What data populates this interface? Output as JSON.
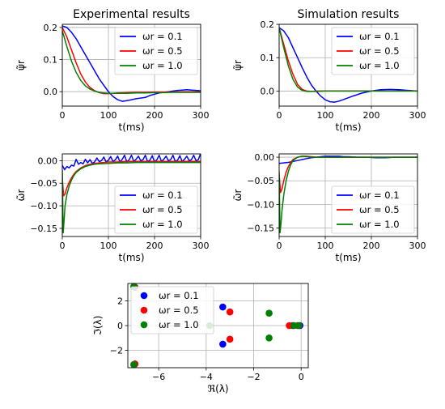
{
  "chart_data": [
    {
      "id": "exp_psi",
      "type": "line",
      "title": "Experimental results",
      "xlabel": "t(ms)",
      "ylabel": "ψ̃r",
      "xlim": [
        0,
        300
      ],
      "ylim": [
        -0.045,
        0.21
      ],
      "xticks": [
        0,
        100,
        200,
        300
      ],
      "yticks": [
        0.0,
        0.1,
        0.2
      ],
      "ytick_labels": [
        "0.0",
        "0.1",
        "0.2"
      ],
      "grid": true,
      "legend": "top-right",
      "series": [
        {
          "name": "ωr = 0.1",
          "color": "#0000ff",
          "x": [
            0,
            10,
            20,
            30,
            40,
            50,
            60,
            70,
            80,
            90,
            100,
            110,
            120,
            130,
            140,
            150,
            160,
            170,
            180,
            190,
            200,
            210,
            220,
            230,
            240,
            250,
            260,
            270,
            280,
            290,
            300
          ],
          "y": [
            0.205,
            0.2,
            0.185,
            0.165,
            0.14,
            0.115,
            0.09,
            0.065,
            0.04,
            0.02,
            0.0,
            -0.015,
            -0.025,
            -0.03,
            -0.028,
            -0.025,
            -0.022,
            -0.02,
            -0.018,
            -0.012,
            -0.008,
            -0.004,
            -0.002,
            0.0,
            0.002,
            0.004,
            0.005,
            0.006,
            0.005,
            0.004,
            0.003
          ]
        },
        {
          "name": "ωr = 0.5",
          "color": "#ff0000",
          "x": [
            0,
            10,
            20,
            30,
            40,
            50,
            60,
            70,
            80,
            90,
            100,
            120,
            140,
            160,
            180,
            200,
            220,
            240,
            260,
            280,
            300
          ],
          "y": [
            0.2,
            0.17,
            0.13,
            0.09,
            0.055,
            0.03,
            0.013,
            0.003,
            -0.003,
            -0.006,
            -0.006,
            -0.004,
            -0.003,
            -0.002,
            -0.002,
            -0.001,
            -0.001,
            -0.001,
            0.0,
            0.0,
            0.0
          ]
        },
        {
          "name": "ωr = 1.0",
          "color": "#008000",
          "x": [
            0,
            10,
            20,
            30,
            40,
            50,
            60,
            70,
            80,
            90,
            100,
            120,
            140,
            160,
            180,
            200,
            220,
            240,
            260,
            280,
            300
          ],
          "y": [
            0.19,
            0.14,
            0.095,
            0.06,
            0.035,
            0.018,
            0.008,
            0.002,
            -0.002,
            -0.004,
            -0.005,
            -0.005,
            -0.005,
            -0.004,
            -0.004,
            -0.003,
            -0.003,
            -0.002,
            -0.002,
            -0.002,
            -0.002
          ]
        }
      ]
    },
    {
      "id": "sim_psi",
      "type": "line",
      "title": "Simulation results",
      "xlabel": "t(ms)",
      "ylabel": "ψ̃r",
      "xlim": [
        0,
        300
      ],
      "ylim": [
        -0.045,
        0.2
      ],
      "xticks": [
        0,
        100,
        200,
        300
      ],
      "yticks": [
        0.0,
        0.1,
        0.2
      ],
      "ytick_labels": [
        "0.0",
        "0.1",
        "0.2"
      ],
      "grid": true,
      "legend": "top-right",
      "series": [
        {
          "name": "ωr = 0.1",
          "color": "#0000ff",
          "x": [
            0,
            10,
            20,
            30,
            40,
            50,
            60,
            70,
            80,
            90,
            100,
            110,
            120,
            130,
            140,
            160,
            180,
            200,
            220,
            240,
            260,
            280,
            300
          ],
          "y": [
            0.19,
            0.18,
            0.16,
            0.13,
            0.1,
            0.07,
            0.042,
            0.018,
            0.0,
            -0.015,
            -0.026,
            -0.032,
            -0.033,
            -0.03,
            -0.025,
            -0.015,
            -0.006,
            0.0,
            0.004,
            0.005,
            0.004,
            0.002,
            0.0
          ]
        },
        {
          "name": "ωr = 0.5",
          "color": "#ff0000",
          "x": [
            0,
            10,
            20,
            30,
            40,
            50,
            60,
            70,
            80,
            100,
            150,
            200,
            250,
            300
          ],
          "y": [
            0.19,
            0.14,
            0.09,
            0.05,
            0.02,
            0.005,
            0.0,
            -0.001,
            -0.001,
            0.0,
            0.0,
            0.0,
            0.0,
            0.0
          ]
        },
        {
          "name": "ωr = 1.0",
          "color": "#008000",
          "x": [
            0,
            10,
            20,
            30,
            40,
            50,
            60,
            70,
            80,
            100,
            150,
            200,
            250,
            300
          ],
          "y": [
            0.19,
            0.13,
            0.075,
            0.035,
            0.012,
            0.002,
            -0.001,
            -0.001,
            0.0,
            0.0,
            0.0,
            0.0,
            0.0,
            0.0
          ]
        }
      ]
    },
    {
      "id": "exp_omega",
      "type": "line",
      "title": "",
      "xlabel": "t(ms)",
      "ylabel": "ω̃r",
      "xlim": [
        0,
        300
      ],
      "ylim": [
        -0.168,
        0.015
      ],
      "xticks": [
        0,
        100,
        200,
        300
      ],
      "yticks": [
        0.0,
        -0.05,
        -0.1,
        -0.15
      ],
      "ytick_labels": [
        "0.00",
        "−0.05",
        "−0.10",
        "−0.15"
      ],
      "grid": true,
      "legend": "bottom-right",
      "series": [
        {
          "name": "ωr = 0.1",
          "color": "#0000ff",
          "x": [
            0,
            5,
            10,
            15,
            20,
            25,
            30,
            35,
            40,
            45,
            50,
            55,
            60,
            65,
            70,
            75,
            80,
            85,
            90,
            95,
            100,
            105,
            110,
            115,
            120,
            125,
            130,
            135,
            140,
            145,
            150,
            155,
            160,
            165,
            170,
            175,
            180,
            185,
            190,
            195,
            200,
            205,
            210,
            215,
            220,
            225,
            230,
            235,
            240,
            245,
            250,
            255,
            260,
            265,
            270,
            275,
            280,
            285,
            290,
            295,
            300
          ],
          "y": [
            -0.01,
            -0.02,
            -0.013,
            -0.016,
            -0.01,
            -0.012,
            0.003,
            -0.008,
            -0.004,
            -0.007,
            0.003,
            -0.005,
            0.002,
            -0.006,
            -0.003,
            0.006,
            -0.002,
            0.0,
            0.008,
            -0.003,
            0.001,
            0.009,
            -0.002,
            0.002,
            0.01,
            -0.003,
            0.003,
            0.012,
            -0.003,
            0.002,
            0.012,
            -0.002,
            0.003,
            0.01,
            0.0,
            0.002,
            0.012,
            -0.002,
            0.001,
            0.011,
            -0.003,
            0.002,
            0.012,
            -0.002,
            0.003,
            0.01,
            0.0,
            0.002,
            0.012,
            -0.002,
            0.001,
            0.011,
            -0.002,
            0.003,
            0.01,
            0.0,
            0.002,
            0.012,
            0.0,
            0.002,
            0.016
          ]
        },
        {
          "name": "ωr = 0.5",
          "color": "#ff0000",
          "x": [
            0,
            3,
            6,
            10,
            15,
            20,
            25,
            30,
            40,
            50,
            60,
            70,
            80,
            90,
            100,
            120,
            140,
            160,
            180,
            200,
            220,
            240,
            260,
            280,
            300
          ],
          "y": [
            -0.04,
            -0.078,
            -0.074,
            -0.06,
            -0.048,
            -0.038,
            -0.03,
            -0.024,
            -0.016,
            -0.011,
            -0.008,
            -0.006,
            -0.005,
            -0.004,
            -0.003,
            -0.003,
            -0.002,
            -0.002,
            -0.002,
            -0.002,
            -0.002,
            -0.002,
            -0.002,
            -0.002,
            -0.002
          ]
        },
        {
          "name": "ωr = 1.0",
          "color": "#008000",
          "x": [
            0,
            2,
            4,
            6,
            10,
            15,
            20,
            25,
            30,
            40,
            50,
            60,
            70,
            80,
            100,
            120,
            140,
            160,
            180,
            200,
            220,
            240,
            260,
            280,
            300
          ],
          "y": [
            -0.02,
            -0.16,
            -0.13,
            -0.1,
            -0.075,
            -0.056,
            -0.043,
            -0.033,
            -0.026,
            -0.018,
            -0.013,
            -0.01,
            -0.008,
            -0.007,
            -0.006,
            -0.005,
            -0.005,
            -0.004,
            -0.004,
            -0.004,
            -0.004,
            -0.004,
            -0.004,
            -0.004,
            -0.004
          ]
        }
      ]
    },
    {
      "id": "sim_omega",
      "type": "line",
      "title": "",
      "xlabel": "t(ms)",
      "ylabel": "ω̃r",
      "xlim": [
        0,
        300
      ],
      "ylim": [
        -0.168,
        0.007
      ],
      "xticks": [
        0,
        100,
        200,
        300
      ],
      "yticks": [
        0.0,
        -0.05,
        -0.1,
        -0.15
      ],
      "ytick_labels": [
        "0.00",
        "−0.05",
        "−0.10",
        "−0.15"
      ],
      "grid": true,
      "legend": "bottom-right",
      "series": [
        {
          "name": "ωr = 0.1",
          "color": "#0000ff",
          "x": [
            0,
            10,
            20,
            30,
            40,
            50,
            60,
            70,
            80,
            90,
            100,
            110,
            120,
            130,
            140,
            150,
            170,
            190,
            210,
            230,
            250,
            270,
            300
          ],
          "y": [
            -0.013,
            -0.012,
            -0.011,
            -0.009,
            -0.007,
            -0.005,
            -0.003,
            -0.001,
            0.0,
            0.001,
            0.002,
            0.002,
            0.002,
            0.002,
            0.001,
            0.001,
            0.0,
            0.0,
            -0.001,
            -0.001,
            0.0,
            0.0,
            0.0
          ]
        },
        {
          "name": "ωr = 0.5",
          "color": "#ff0000",
          "x": [
            0,
            3,
            6,
            10,
            15,
            20,
            25,
            30,
            40,
            50,
            60,
            70,
            80,
            100,
            150,
            200,
            250,
            300
          ],
          "y": [
            -0.035,
            -0.075,
            -0.068,
            -0.05,
            -0.032,
            -0.02,
            -0.011,
            -0.005,
            0.0,
            0.002,
            0.002,
            0.001,
            0.0,
            0.0,
            0.0,
            0.0,
            0.0,
            0.0
          ]
        },
        {
          "name": "ωr = 1.0",
          "color": "#008000",
          "x": [
            0,
            2,
            4,
            6,
            10,
            15,
            20,
            25,
            30,
            40,
            50,
            60,
            70,
            80,
            100,
            150,
            200,
            250,
            300
          ],
          "y": [
            -0.03,
            -0.16,
            -0.14,
            -0.115,
            -0.08,
            -0.05,
            -0.03,
            -0.016,
            -0.007,
            0.0,
            0.002,
            0.001,
            0.0,
            0.0,
            0.0,
            0.0,
            0.0,
            0.0,
            0.0
          ]
        }
      ]
    },
    {
      "id": "poles",
      "type": "scatter",
      "title": "",
      "xlabel": "ℜ(λ)",
      "ylabel": "ℑ(λ)",
      "xlim": [
        -7.3,
        0.3
      ],
      "ylim": [
        -3.4,
        3.4
      ],
      "xticks": [
        -6,
        -4,
        -2,
        0
      ],
      "xtick_labels": [
        "−6",
        "−4",
        "−2",
        "0"
      ],
      "yticks": [
        -2,
        0,
        2
      ],
      "ytick_labels": [
        "−2",
        "0",
        "2"
      ],
      "grid": true,
      "legend": "upper-left",
      "series": [
        {
          "name": "ωr = 0.1",
          "color": "#0000ff",
          "x": [
            -7.0,
            -7.0,
            -3.3,
            -3.3,
            -0.35,
            -0.05
          ],
          "y": [
            3.1,
            -3.1,
            1.5,
            -1.5,
            0.0,
            0.0
          ]
        },
        {
          "name": "ωr = 0.5",
          "color": "#ff0000",
          "x": [
            -7.0,
            -7.0,
            -3.0,
            -3.0,
            -0.5,
            -0.15
          ],
          "y": [
            3.1,
            -3.1,
            1.1,
            -1.1,
            0.0,
            0.0
          ]
        },
        {
          "name": "ωr = 1.0",
          "color": "#008000",
          "x": [
            -7.05,
            -7.05,
            -3.85,
            -1.35,
            -1.35,
            -0.3,
            -0.1
          ],
          "y": [
            3.15,
            -3.15,
            0.0,
            1.0,
            -1.0,
            0.0,
            0.0
          ]
        }
      ]
    }
  ]
}
